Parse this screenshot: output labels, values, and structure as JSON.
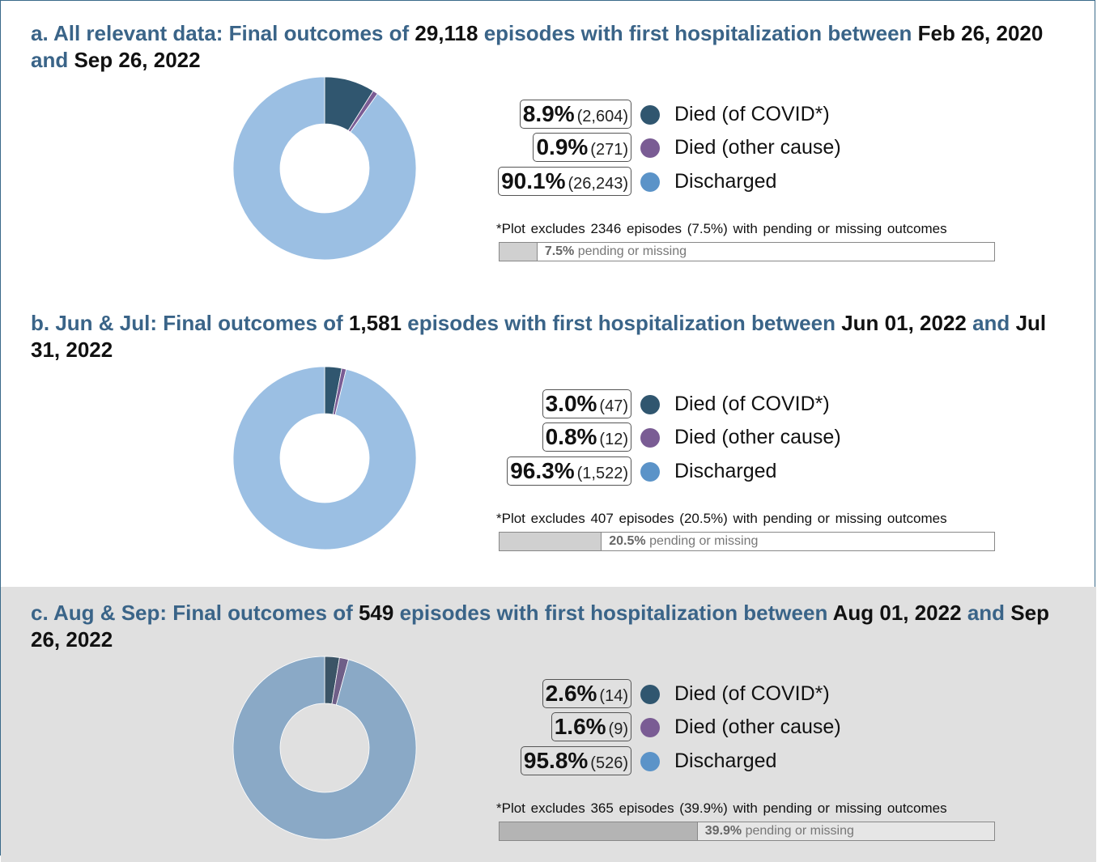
{
  "chart_data": [
    {
      "type": "donut",
      "title_parts": [
        {
          "text": "a. All relevant data: Final outcomes of",
          "highlight": false
        },
        {
          "text": "29,118",
          "highlight": true
        },
        {
          "text": "episodes with first hospitalization between",
          "highlight": false
        },
        {
          "text": "Feb 26, 2020",
          "highlight": true
        },
        {
          "text": "and",
          "highlight": false
        },
        {
          "text": "Sep 26, 2022",
          "highlight": true
        }
      ],
      "categories": [
        "Died (of COVID*)",
        "Died (other cause)",
        "Discharged"
      ],
      "values": [
        8.9,
        0.9,
        90.1
      ],
      "value_labels": [
        "8.9%",
        "0.9%",
        "90.1%"
      ],
      "counts": [
        2604,
        271,
        26243
      ],
      "count_labels": [
        "(2,604)",
        "(271)",
        "(26,243)"
      ],
      "colors": [
        "#30566f",
        "#7a5c94",
        "#9bbfe3"
      ],
      "legend_colors": [
        "#30566f",
        "#7a5c94",
        "#5b93c8"
      ],
      "excluded": {
        "note": "*Plot excludes 2346 episodes (7.5%) with pending or missing outcomes",
        "value": 7.5,
        "label": "7.5%",
        "text": "pending or missing",
        "xlim": [
          0,
          100
        ],
        "color": "#d0d0d0"
      }
    },
    {
      "type": "donut",
      "title_parts": [
        {
          "text": "b. Jun & Jul: Final outcomes of",
          "highlight": false
        },
        {
          "text": "1,581",
          "highlight": true
        },
        {
          "text": "episodes with first hospitalization between",
          "highlight": false
        },
        {
          "text": "Jun 01, 2022",
          "highlight": true
        },
        {
          "text": "and",
          "highlight": false
        },
        {
          "text": "Jul 31, 2022",
          "highlight": true
        }
      ],
      "categories": [
        "Died (of COVID*)",
        "Died (other cause)",
        "Discharged"
      ],
      "values": [
        3.0,
        0.8,
        96.3
      ],
      "value_labels": [
        "3.0%",
        "0.8%",
        "96.3%"
      ],
      "counts": [
        47,
        12,
        1522
      ],
      "count_labels": [
        "(47)",
        "(12)",
        "(1,522)"
      ],
      "colors": [
        "#30566f",
        "#7a5c94",
        "#9bbfe3"
      ],
      "legend_colors": [
        "#30566f",
        "#7a5c94",
        "#5b93c8"
      ],
      "excluded": {
        "note": "*Plot excludes 407 episodes (20.5%) with pending or missing outcomes",
        "value": 20.5,
        "label": "20.5%",
        "text": "pending or missing",
        "xlim": [
          0,
          100
        ],
        "color": "#d0d0d0"
      }
    },
    {
      "type": "donut",
      "title_parts": [
        {
          "text": "c. Aug & Sep: Final outcomes of",
          "highlight": false
        },
        {
          "text": "549",
          "highlight": true
        },
        {
          "text": "episodes with first hospitalization between",
          "highlight": false
        },
        {
          "text": "Aug 01, 2022",
          "highlight": true
        },
        {
          "text": "and",
          "highlight": false
        },
        {
          "text": "Sep 26, 2022",
          "highlight": true
        }
      ],
      "categories": [
        "Died (of COVID*)",
        "Died (other cause)",
        "Discharged"
      ],
      "values": [
        2.6,
        1.6,
        95.8
      ],
      "value_labels": [
        "2.6%",
        "1.6%",
        "95.8%"
      ],
      "counts": [
        14,
        9,
        526
      ],
      "count_labels": [
        "(14)",
        "(9)",
        "(526)"
      ],
      "colors": [
        "#3b5466",
        "#6f5f88",
        "#8aa9c6"
      ],
      "legend_colors": [
        "#30566f",
        "#7a5c94",
        "#5b93c8"
      ],
      "excluded": {
        "note": "*Plot excludes 365 episodes (39.9%) with pending or missing outcomes",
        "value": 39.9,
        "label": "39.9%",
        "text": "pending or missing",
        "xlim": [
          0,
          100
        ],
        "color": "#b4b4b4"
      }
    }
  ]
}
